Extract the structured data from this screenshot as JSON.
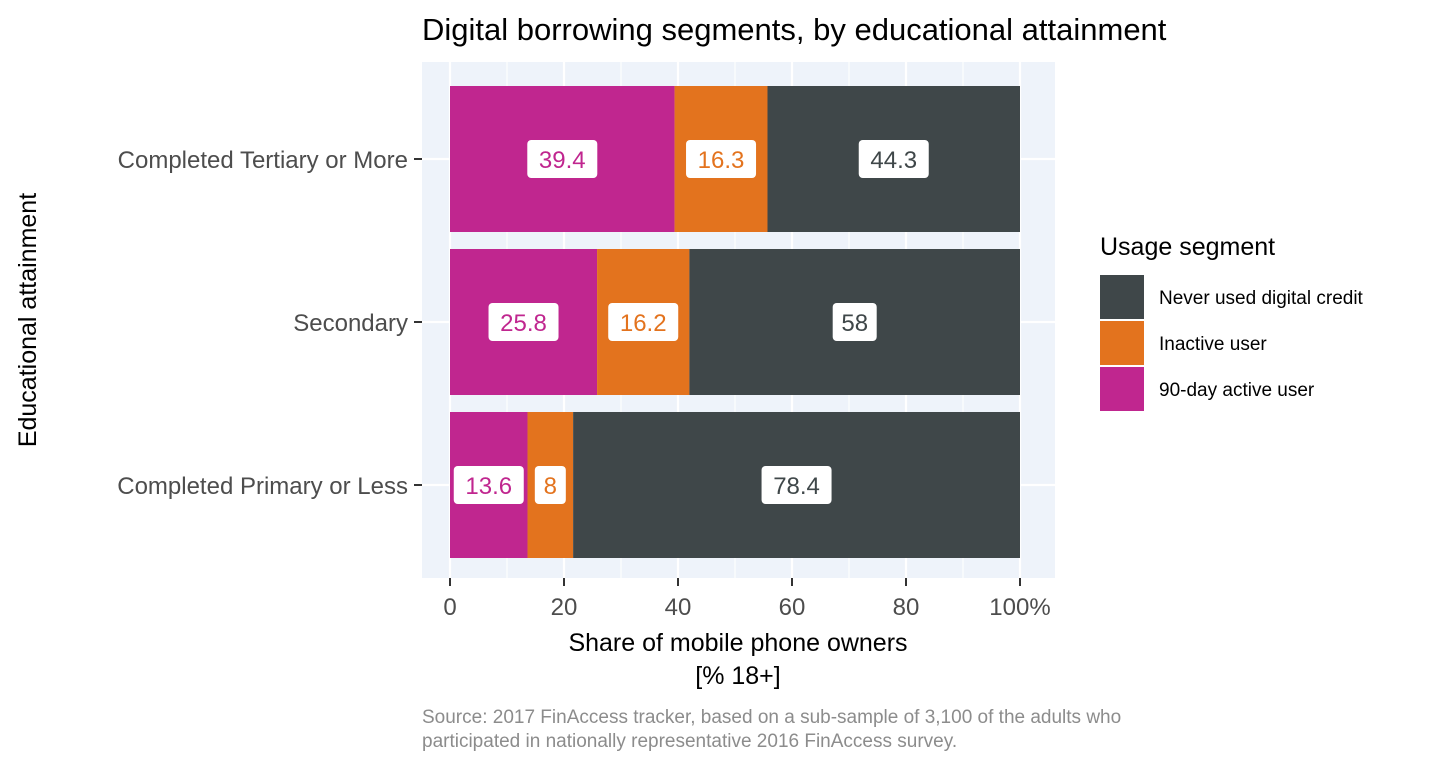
{
  "chart_data": {
    "type": "bar",
    "orientation": "horizontal",
    "stacked": true,
    "title": "Digital borrowing segments, by educational attainment",
    "xlabel_line1": "Share of mobile phone owners",
    "xlabel_line2": "[% 18+]",
    "ylabel": "Educational attainment",
    "xlim": [
      0,
      100
    ],
    "x_ticks": [
      "0",
      "20",
      "40",
      "60",
      "80",
      "100%"
    ],
    "x_tick_values": [
      0,
      20,
      40,
      60,
      80,
      100
    ],
    "categories": [
      "Completed Tertiary or More",
      "Secondary",
      "Completed Primary or Less"
    ],
    "series": [
      {
        "name": "90-day active user",
        "color": "#C0268F",
        "values": [
          39.4,
          25.8,
          13.6
        ],
        "labels": [
          "39.4",
          "25.8",
          "13.6"
        ]
      },
      {
        "name": "Inactive user",
        "color": "#E3731E",
        "values": [
          16.3,
          16.2,
          8.0
        ],
        "labels": [
          "16.3",
          "16.2",
          "8"
        ]
      },
      {
        "name": "Never used digital credit",
        "color": "#3F4749",
        "values": [
          44.3,
          58.0,
          78.4
        ],
        "labels": [
          "44.3",
          "58",
          "78.4"
        ]
      }
    ],
    "legend": {
      "title": "Usage segment",
      "position": "right",
      "order": [
        "Never used digital credit",
        "Inactive user",
        "90-day active user"
      ]
    },
    "grid": true,
    "panel_background": "#EEF3FA",
    "source_line1": "Source: 2017 FinAccess tracker, based on a sub-sample of 3,100 of the adults who",
    "source_line2": "participated in nationally representative 2016 FinAccess survey."
  }
}
